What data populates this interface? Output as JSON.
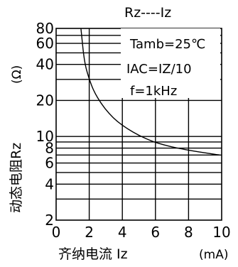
{
  "chart_data": {
    "type": "line",
    "title": "Rz----Iz",
    "xlabel": "齐纳电流 Iz",
    "xunit": "(mA)",
    "ylabel": "动态电阻Rz",
    "yunit": "(Ω)",
    "xlim": [
      0,
      10
    ],
    "ylim": [
      2,
      80
    ],
    "yscale": "log",
    "grid": true,
    "x_ticks": [
      "0",
      "2",
      "4",
      "6",
      "8",
      "10"
    ],
    "y_ticks": [
      {
        "value": 80,
        "label": "80"
      },
      {
        "value": 60,
        "label": "60"
      },
      {
        "value": 40,
        "label": "40"
      },
      {
        "value": 20,
        "label": "20"
      },
      {
        "value": 10,
        "label": "10"
      },
      {
        "value": 8,
        "label": "8"
      },
      {
        "value": 6,
        "label": "6"
      },
      {
        "value": 4,
        "label": "4"
      },
      {
        "value": 2,
        "label": "2"
      }
    ],
    "y_grid_extra": [
      70,
      50,
      30,
      9,
      7,
      5,
      3
    ],
    "annotations": {
      "condition_1": "Tamb=25℃",
      "condition_2": "IAC=IZ/10",
      "condition_3": "f=1kHz"
    },
    "series": [
      {
        "x": [
          1.5,
          1.7,
          2.0,
          2.3,
          2.7,
          3.2,
          3.7,
          4.3,
          5.0,
          5.8,
          6.5,
          7.3,
          8.2,
          9.0,
          9.9
        ],
        "y": [
          80,
          42,
          30,
          23.5,
          19,
          15.5,
          13.3,
          11.6,
          10.2,
          9.1,
          8.5,
          8.0,
          7.6,
          7.3,
          7.0
        ]
      }
    ]
  }
}
